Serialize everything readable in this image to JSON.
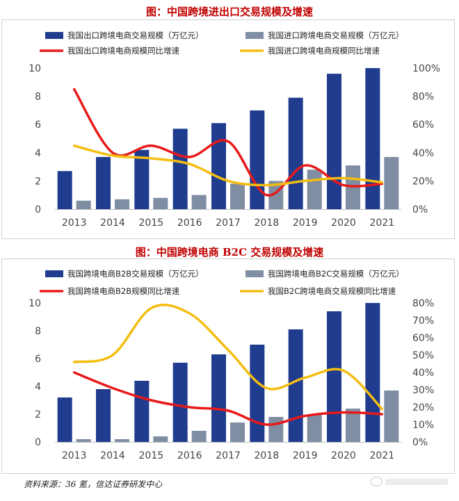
{
  "chart_data": [
    {
      "type": "bar",
      "title": "图：中国跨境进出口交易规模及增速",
      "categories": [
        "2013",
        "2014",
        "2015",
        "2016",
        "2017",
        "2018",
        "2019",
        "2020",
        "2021"
      ],
      "left_axis": {
        "ylim": [
          0,
          10
        ],
        "ticks": [
          "0",
          "2",
          "4",
          "6",
          "8",
          "10"
        ]
      },
      "right_axis": {
        "ylim": [
          0,
          100
        ],
        "ticks": [
          "0%",
          "20%",
          "40%",
          "60%",
          "80%",
          "100%"
        ]
      },
      "bar_series": [
        {
          "name": "我国出口跨境电商交易规模（万亿元）",
          "color": "#1f3c8f",
          "values": [
            2.7,
            3.7,
            4.2,
            5.7,
            6.1,
            7.0,
            7.9,
            9.6,
            10.0
          ]
        },
        {
          "name": "我国进口跨境电商交易规模（万亿元）",
          "color": "#7f8ea3",
          "values": [
            0.6,
            0.7,
            0.8,
            1.0,
            1.8,
            2.0,
            2.8,
            3.1,
            3.7
          ]
        }
      ],
      "line_series": [
        {
          "name": "我国出口跨境电商规模同比增速",
          "color": "#e8191a",
          "values": [
            85,
            40,
            45,
            37,
            48,
            10,
            31,
            17,
            18
          ]
        },
        {
          "name": "我国进口跨境电商规模同比增速",
          "color": "#f5bd10",
          "values": [
            45,
            38,
            36,
            32,
            20,
            17,
            20,
            22,
            19
          ]
        }
      ]
    },
    {
      "type": "bar",
      "title": "图：中国跨境电商 B2C 交易规模及增速",
      "categories": [
        "2013",
        "2014",
        "2015",
        "2016",
        "2017",
        "2018",
        "2019",
        "2020",
        "2021"
      ],
      "left_axis": {
        "ylim": [
          0,
          10
        ],
        "ticks": [
          "0",
          "2",
          "4",
          "6",
          "8",
          "10"
        ]
      },
      "right_axis": {
        "ylim": [
          0,
          80
        ],
        "ticks": [
          "0%",
          "10%",
          "20%",
          "30%",
          "40%",
          "50%",
          "60%",
          "70%",
          "80%"
        ]
      },
      "bar_series": [
        {
          "name": "我国跨境电商B2B交易规模（万亿元）",
          "color": "#1f3c8f",
          "values": [
            3.2,
            3.8,
            4.4,
            5.7,
            6.3,
            7.0,
            8.1,
            9.4,
            10.0
          ]
        },
        {
          "name": "我国跨境电商B2C交易规模（万亿元）",
          "color": "#7f8ea3",
          "values": [
            0.2,
            0.2,
            0.4,
            0.8,
            1.4,
            1.8,
            2.0,
            2.4,
            3.7
          ]
        }
      ],
      "line_series": [
        {
          "name": "我国跨境电商B2B规模同比增速",
          "color": "#e8191a",
          "values": [
            40,
            31,
            24,
            20,
            18,
            10,
            15,
            17,
            16
          ]
        },
        {
          "name": "我国B2C跨境电商交易规模同比增速",
          "color": "#f5bd10",
          "values": [
            46,
            50,
            77,
            74,
            53,
            31,
            37,
            41,
            19
          ]
        }
      ]
    }
  ],
  "footer": {
    "source": "资料来源：36 氪，信达证券研发中心"
  },
  "watermark": {
    "text": ""
  }
}
